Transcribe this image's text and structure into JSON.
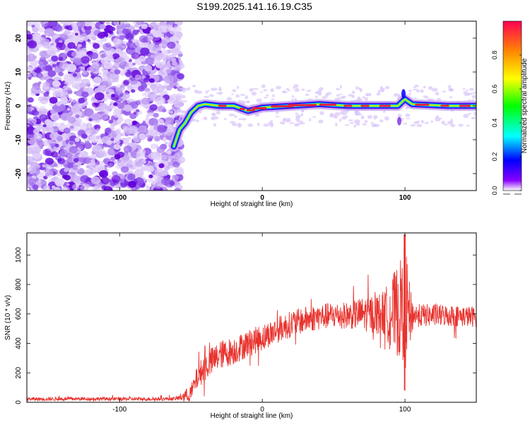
{
  "title": "S199.2025.141.16.19.C35",
  "colors": {
    "snr_line": "#e8322d",
    "heatmap_noise": "#7a2ee6",
    "heatmap_signal_core": "#e8213c"
  },
  "chart_data": [
    {
      "type": "heatmap",
      "xlabel": "Height of straight line (km)",
      "ylabel": "Frequency (Hz)",
      "xlim": [
        -165,
        150
      ],
      "ylim": [
        -25,
        25
      ],
      "xticks": [
        -100,
        0,
        100
      ],
      "yticks": [
        -20,
        -10,
        0,
        10,
        20
      ],
      "colorbar": {
        "label": "Normalized spectral amplitude",
        "range": [
          0,
          1
        ],
        "ticks": [
          "0.0",
          "0.2",
          "0.4",
          "0.6",
          "0.8"
        ],
        "tick_values": [
          0.0,
          0.2,
          0.4,
          0.6,
          0.8
        ],
        "colors": [
          "#ffffff",
          "#8800ff",
          "#0000ff",
          "#00ffff",
          "#00ff00",
          "#ffff00",
          "#ff8800",
          "#ff0055"
        ]
      },
      "regions": {
        "noise": [
          -165,
          -60
        ],
        "transition": [
          -60,
          -40
        ],
        "signal": [
          -40,
          150
        ]
      },
      "signal_track": [
        [
          -62,
          -12
        ],
        [
          -58,
          -7
        ],
        [
          -54,
          -5
        ],
        [
          -50,
          -2
        ],
        [
          -45,
          0
        ],
        [
          -40,
          0.5
        ],
        [
          -30,
          0
        ],
        [
          -20,
          0
        ],
        [
          -10,
          -1.5
        ],
        [
          0,
          -0.5
        ],
        [
          20,
          0
        ],
        [
          40,
          0.5
        ],
        [
          60,
          0
        ],
        [
          80,
          0
        ],
        [
          95,
          0
        ],
        [
          100,
          2
        ],
        [
          105,
          0.5
        ],
        [
          130,
          0
        ],
        [
          150,
          0
        ]
      ]
    },
    {
      "type": "line",
      "xlabel": "Height of straight line (km)",
      "ylabel": "SNR (10 * v/v)",
      "xlim": [
        -165,
        150
      ],
      "ylim": [
        0,
        1150
      ],
      "xticks": [
        -100,
        0,
        100
      ],
      "yticks": [
        0,
        200,
        400,
        600,
        800,
        1000
      ],
      "series": [
        {
          "points": [
            [
              -165,
              22
            ],
            [
              -120,
              24
            ],
            [
              -80,
              22
            ],
            [
              -60,
              25
            ],
            [
              -50,
              60
            ],
            [
              -45,
              180
            ],
            [
              -40,
              240
            ],
            [
              -35,
              280
            ],
            [
              -30,
              320
            ],
            [
              -20,
              350
            ],
            [
              -10,
              400
            ],
            [
              0,
              440
            ],
            [
              10,
              490
            ],
            [
              20,
              530
            ],
            [
              30,
              560
            ],
            [
              40,
              580
            ],
            [
              50,
              590
            ],
            [
              60,
              590
            ],
            [
              70,
              600
            ],
            [
              80,
              600
            ],
            [
              90,
              610
            ],
            [
              97,
              620
            ],
            [
              100,
              700
            ],
            [
              103,
              590
            ],
            [
              110,
              590
            ],
            [
              130,
              590
            ],
            [
              150,
              580
            ]
          ],
          "noise_amplitude": [
            [
              -165,
              12
            ],
            [
              -60,
              12
            ],
            [
              -50,
              60
            ],
            [
              -40,
              100
            ],
            [
              0,
              90
            ],
            [
              60,
              90
            ],
            [
              85,
              150
            ],
            [
              100,
              400
            ],
            [
              106,
              80
            ],
            [
              150,
              70
            ]
          ]
        }
      ]
    }
  ]
}
